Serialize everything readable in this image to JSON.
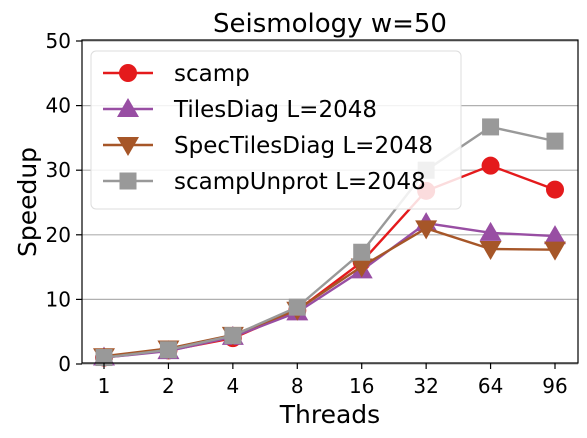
{
  "chart_data": {
    "type": "line",
    "title": "Seismology w=50",
    "xlabel": "Threads",
    "ylabel": "Speedup",
    "categories": [
      "1",
      "2",
      "4",
      "8",
      "16",
      "32",
      "64",
      "96"
    ],
    "ylim": [
      0,
      50
    ],
    "yticks": [
      0,
      10,
      20,
      30,
      40,
      50
    ],
    "grid": "horizontal",
    "legend_position": "top-left",
    "series": [
      {
        "name": "scamp",
        "color": "#e41a1c",
        "marker": "circle",
        "values": [
          1.0,
          2.1,
          4.0,
          8.3,
          15.8,
          26.8,
          30.7,
          27.0
        ]
      },
      {
        "name": "TilesDiag L=2048",
        "color": "#984ea3",
        "marker": "triangle-up",
        "values": [
          1.0,
          2.0,
          4.2,
          8.0,
          14.5,
          21.8,
          20.3,
          19.8
        ]
      },
      {
        "name": "SpecTilesDiag L=2048",
        "color": "#a65628",
        "marker": "triangle-down",
        "values": [
          1.2,
          2.4,
          4.5,
          8.4,
          15.1,
          21.0,
          17.8,
          17.7
        ]
      },
      {
        "name": "scampUnprot L=2048",
        "color": "#999999",
        "marker": "square",
        "values": [
          1.0,
          2.2,
          4.4,
          8.8,
          17.3,
          30.0,
          36.7,
          34.5
        ]
      }
    ]
  }
}
